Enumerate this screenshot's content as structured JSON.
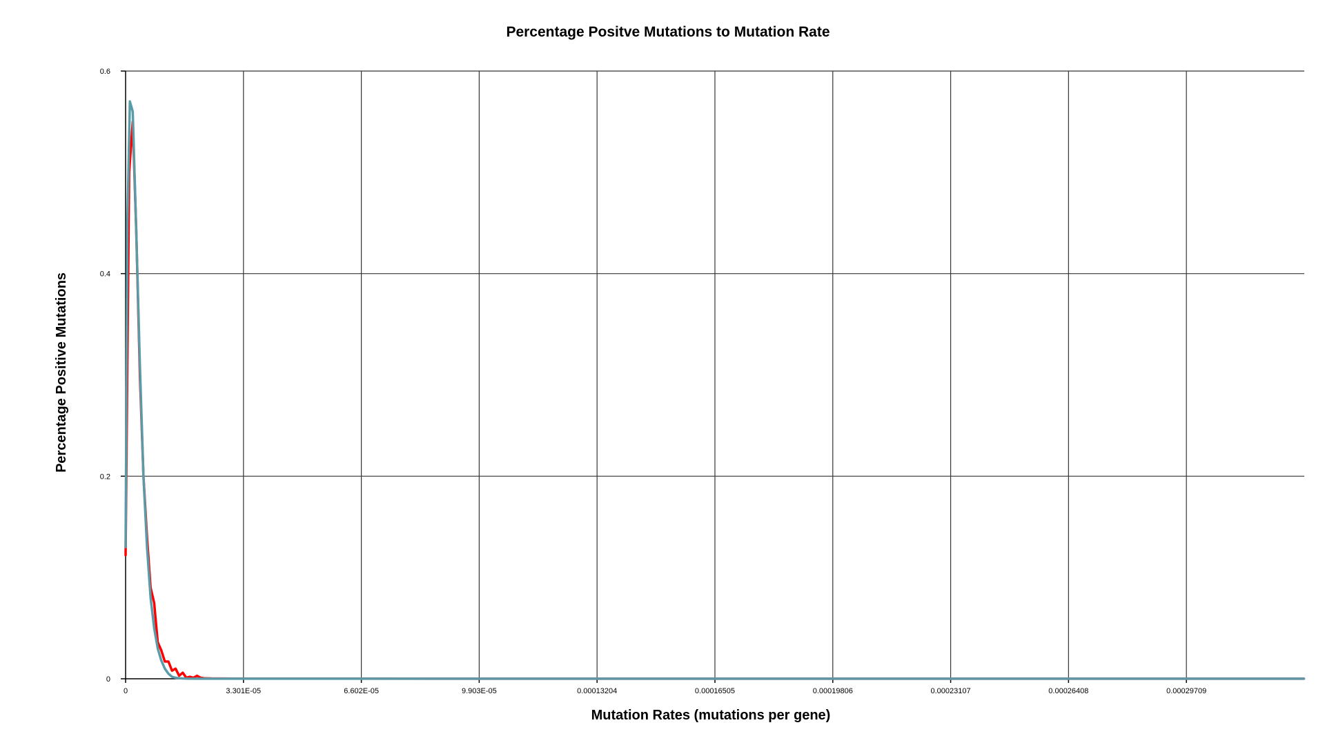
{
  "chart_data": {
    "type": "line",
    "title": "Percentage Positve Mutations to Mutation Rate",
    "xlabel": "Mutation Rates (mutations per gene)",
    "ylabel": "Percentage Positive Mutations",
    "xlim": [
      0,
      0.00033011
    ],
    "ylim": [
      0,
      0.6
    ],
    "grid": true,
    "x_ticks": [
      {
        "value": 0,
        "label": "0"
      },
      {
        "value": 3.301e-05,
        "label": "3.301E-05"
      },
      {
        "value": 6.602e-05,
        "label": "6.602E-05"
      },
      {
        "value": 9.903e-05,
        "label": "9.903E-05"
      },
      {
        "value": 0.00013204,
        "label": "0.00013204"
      },
      {
        "value": 0.00016505,
        "label": "0.00016505"
      },
      {
        "value": 0.00019806,
        "label": "0.00019806"
      },
      {
        "value": 0.00023107,
        "label": "0.00023107"
      },
      {
        "value": 0.00026408,
        "label": "0.00026408"
      },
      {
        "value": 0.00029709,
        "label": "0.00029709"
      }
    ],
    "y_ticks": [
      {
        "value": 0,
        "label": "0"
      },
      {
        "value": 0.2,
        "label": "0.2"
      },
      {
        "value": 0.4,
        "label": "0.4"
      },
      {
        "value": 0.6,
        "label": "0.6"
      }
    ],
    "series": [
      {
        "color": "#ff0000",
        "x": [
          0,
          1e-06,
          2e-06,
          3e-06,
          4e-06,
          5e-06,
          6e-06,
          7e-06,
          8e-06,
          9e-06,
          1e-05,
          1.1e-05,
          1.2e-05,
          1.3e-05,
          1.4e-05,
          1.5e-05,
          1.6e-05,
          1.7e-05,
          1.8e-05,
          1.9e-05,
          2e-05,
          2.1e-05,
          2.2e-05,
          2.4e-05,
          3e-05,
          0.0001,
          0.0002,
          0.00033
        ],
        "y": [
          0.122,
          0.5,
          0.55,
          0.44,
          0.3,
          0.2,
          0.14,
          0.09,
          0.075,
          0.036,
          0.028,
          0.017,
          0.017,
          0.008,
          0.01,
          0.003,
          0.006,
          0.001,
          0.002,
          0.001,
          0.003,
          0.001,
          0.0005,
          0.0003,
          0.0002,
          0.0001,
          0.0001,
          0.0001
        ]
      },
      {
        "color": "#5b9ba8",
        "x": [
          0,
          5e-07,
          1.2e-06,
          2e-06,
          3e-06,
          4e-06,
          5e-06,
          6e-06,
          7e-06,
          8e-06,
          9e-06,
          1e-05,
          1.1e-05,
          1.2e-05,
          1.3e-05,
          1.4e-05,
          1.5e-05,
          1.7e-05,
          2e-05,
          0.0001,
          0.0002,
          0.00033
        ],
        "y": [
          0.13,
          0.45,
          0.57,
          0.56,
          0.44,
          0.31,
          0.2,
          0.13,
          0.08,
          0.05,
          0.03,
          0.018,
          0.01,
          0.005,
          0.002,
          0.001,
          0.0005,
          0.0002,
          0.0001,
          0.0001,
          0.0001,
          0.0001
        ]
      }
    ]
  }
}
